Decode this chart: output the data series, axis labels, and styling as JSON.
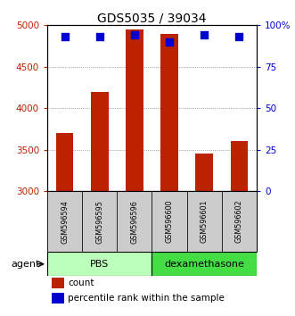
{
  "title": "GDS5035 / 39034",
  "samples": [
    "GSM596594",
    "GSM596595",
    "GSM596596",
    "GSM596600",
    "GSM596601",
    "GSM596602"
  ],
  "counts": [
    3700,
    4200,
    4950,
    4900,
    3450,
    3600
  ],
  "percentiles": [
    93,
    93,
    94,
    90,
    94,
    93
  ],
  "ylim_left": [
    3000,
    5000
  ],
  "ylim_right": [
    0,
    100
  ],
  "yticks_left": [
    3000,
    3500,
    4000,
    4500,
    5000
  ],
  "yticks_right": [
    0,
    25,
    50,
    75,
    100
  ],
  "ytick_labels_right": [
    "0",
    "25",
    "50",
    "75",
    "100%"
  ],
  "bar_color": "#BB2200",
  "dot_color": "#0000CC",
  "pbs_color": "#BBFFBB",
  "dex_color": "#44DD44",
  "sample_box_color": "#CCCCCC",
  "group_labels": [
    "PBS",
    "dexamethasone"
  ],
  "agent_label": "agent",
  "legend_count_label": "count",
  "legend_pct_label": "percentile rank within the sample",
  "bar_width": 0.5,
  "dot_size": 35
}
